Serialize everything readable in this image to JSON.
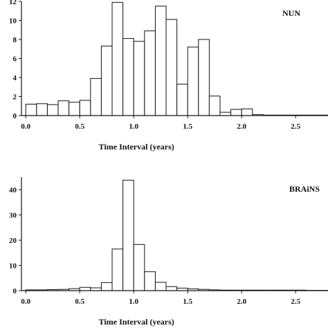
{
  "chart_data": [
    {
      "type": "bar",
      "panel_label": "NUN",
      "xlabel": "Time Interval (years)",
      "ylabel": "",
      "xlim": [
        -0.04,
        2.8
      ],
      "ylim": [
        0,
        12
      ],
      "xticks": [
        "0.0",
        "0.5",
        "1.0",
        "1.5",
        "2.0",
        "2.5"
      ],
      "yticks": [
        "0",
        "2",
        "4",
        "6",
        "8",
        "10",
        "12"
      ],
      "bin_width": 0.1,
      "bin_starts": [
        0,
        0.1,
        0.2,
        0.3,
        0.4,
        0.5,
        0.6,
        0.7,
        0.8,
        0.9,
        1.0,
        1.1,
        1.2,
        1.3,
        1.4,
        1.5,
        1.6,
        1.7,
        1.8,
        1.9,
        2.0,
        2.1,
        2.2,
        2.3,
        2.4,
        2.5,
        2.6,
        2.7
      ],
      "values": [
        1.2,
        1.25,
        1.15,
        1.55,
        1.4,
        1.6,
        3.9,
        7.3,
        11.9,
        8.1,
        7.8,
        8.9,
        11.5,
        10.1,
        3.3,
        7.2,
        8.0,
        2.05,
        0.35,
        0.65,
        0.7,
        0.1,
        0.05,
        0.05,
        0.05,
        0.05,
        0.05,
        0.05
      ]
    },
    {
      "type": "bar",
      "panel_label": "BRAiNS",
      "xlabel": "Time Interval (years)",
      "ylabel": "",
      "xlim": [
        -0.04,
        2.8
      ],
      "ylim": [
        0,
        45
      ],
      "xticks": [
        "0.0",
        "0.5",
        "1.0",
        "1.5",
        "2.0",
        "2.5"
      ],
      "yticks": [
        "0",
        "10",
        "20",
        "30",
        "40"
      ],
      "bin_width": 0.1,
      "bin_starts": [
        0,
        0.1,
        0.2,
        0.3,
        0.4,
        0.5,
        0.6,
        0.7,
        0.8,
        0.9,
        1.0,
        1.1,
        1.2,
        1.3,
        1.4,
        1.5,
        1.6,
        1.7,
        1.8,
        1.9,
        2.0,
        2.1,
        2.2,
        2.3,
        2.4,
        2.5,
        2.6,
        2.7
      ],
      "values": [
        0.3,
        0.3,
        0.4,
        0.5,
        0.8,
        1.3,
        1.1,
        3.2,
        16.5,
        43.8,
        18.3,
        7.5,
        3.3,
        1.6,
        1.0,
        0.7,
        0.5,
        0.3,
        0.2,
        0.2,
        0.2,
        0.2,
        0.2,
        0.2,
        0.2,
        0.2,
        0.1,
        0.1
      ]
    }
  ]
}
